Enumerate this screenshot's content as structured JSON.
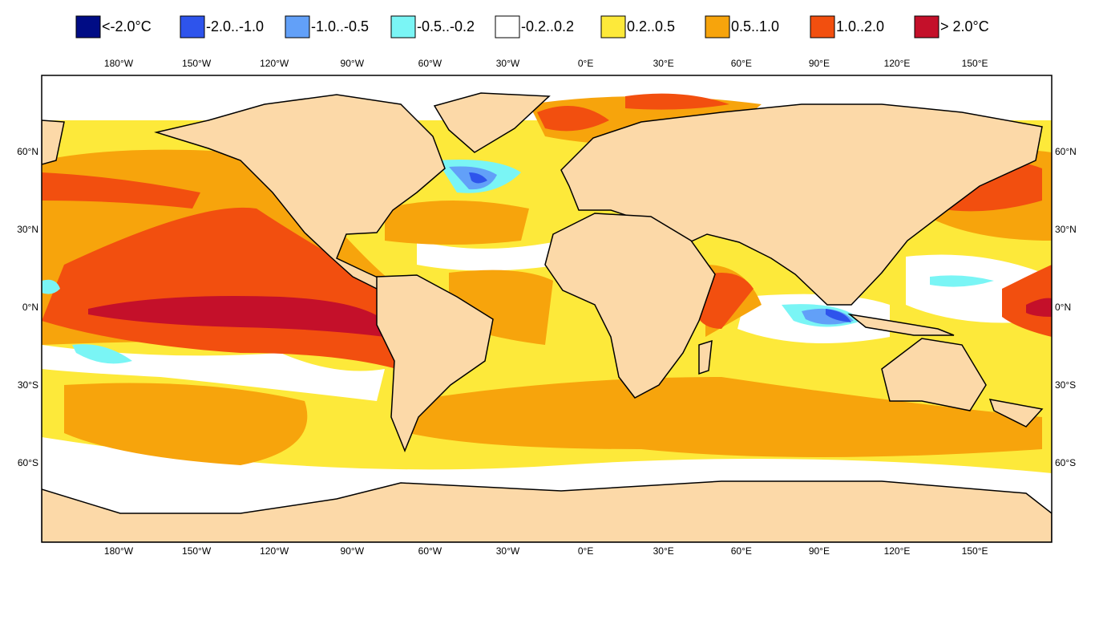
{
  "legend": [
    {
      "label": "<-2.0°C",
      "color": "#000c85"
    },
    {
      "label": "-2.0..-1.0",
      "color": "#2e54ec"
    },
    {
      "label": "-1.0..-0.5",
      "color": "#62a0f8"
    },
    {
      "label": "-0.5..-0.2",
      "color": "#7af5f5"
    },
    {
      "label": "-0.2..0.2",
      "color": "#ffffff"
    },
    {
      "label": "0.2..0.5",
      "color": "#fde93a"
    },
    {
      "label": "0.5..1.0",
      "color": "#f7a40c"
    },
    {
      "label": "1.0..2.0",
      "color": "#f24f0f"
    },
    {
      "label": "> 2.0°C",
      "color": "#c4102a"
    }
  ],
  "x_labels": [
    "180°W",
    "150°W",
    "120°W",
    "90°W",
    "60°W",
    "30°W",
    "0°E",
    "30°E",
    "60°E",
    "90°E",
    "120°E",
    "150°E"
  ],
  "y_labels": [
    "60°N",
    "30°N",
    "0°N",
    "30°S",
    "60°S"
  ],
  "land_color": "#fcd9a8"
}
